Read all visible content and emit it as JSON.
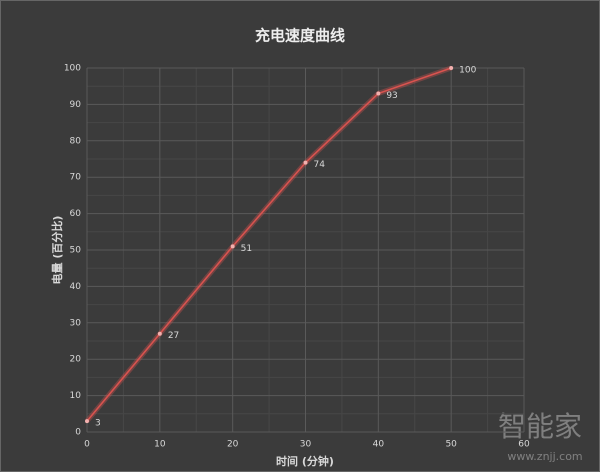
{
  "chart_data": {
    "type": "line",
    "title": "充电速度曲线",
    "x_label": "时间 (分钟)",
    "y_label": "电量 (百分比)",
    "x": [
      0,
      10,
      20,
      30,
      40,
      50
    ],
    "series": [
      {
        "name": "电量",
        "color": "#d9534f",
        "values": [
          3,
          27,
          51,
          74,
          93,
          100
        ]
      }
    ],
    "xlim": [
      0,
      60
    ],
    "xticks": [
      0,
      10,
      20,
      30,
      40,
      50,
      60
    ],
    "ylim": [
      0,
      100
    ],
    "yticks": [
      0,
      10,
      20,
      30,
      40,
      50,
      60,
      70,
      80,
      90,
      100
    ],
    "grid": true,
    "data_labels": true
  },
  "watermark": {
    "text": "智能家",
    "url": "www.znjj.com"
  }
}
